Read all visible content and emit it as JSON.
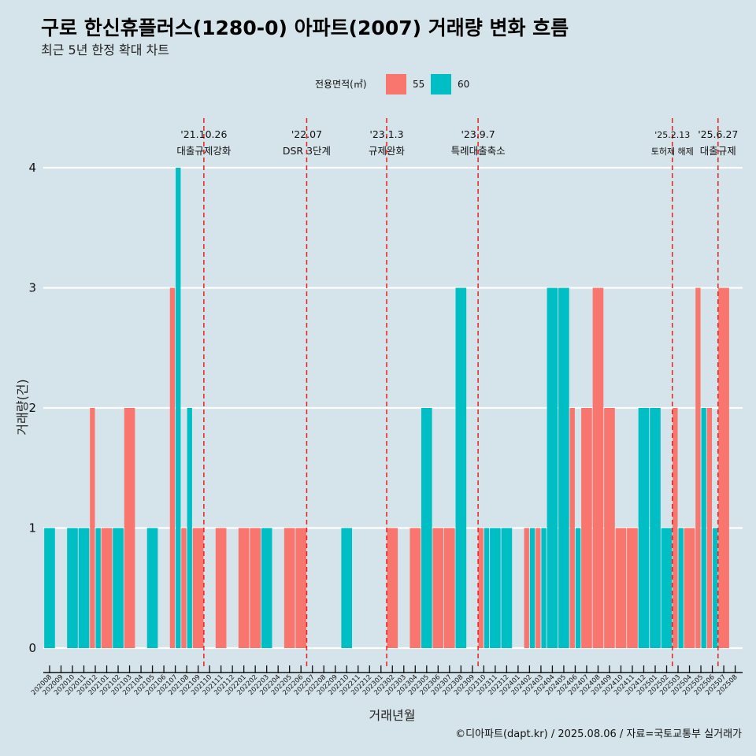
{
  "chart_data": {
    "type": "bar",
    "title": "구로 한신휴플러스(1280-0) 아파트(2007) 거래량 변화 흐름",
    "subtitle": "최근 5년 한정 확대 차트",
    "xlabel": "거래년월",
    "ylabel": "거래량(건)",
    "caption": "©디아파트(dapt.kr) / 2025.08.06 / 자료=국토교통부 실거래가",
    "legend_title": "전용면적(㎡)",
    "legend_position": "top",
    "ylim": [
      0,
      4
    ],
    "y_ticks": [
      "0",
      "1",
      "2",
      "3",
      "4"
    ],
    "grid": true,
    "colors": {
      "55": "#f8766d",
      "60": "#00bfc4"
    },
    "categories": [
      "202008",
      "202009",
      "202010",
      "202011",
      "202012",
      "202101",
      "202102",
      "202103",
      "202104",
      "202105",
      "202106",
      "202107",
      "202108",
      "202109",
      "202110",
      "202111",
      "202112",
      "202201",
      "202202",
      "202203",
      "202204",
      "202205",
      "202206",
      "202207",
      "202208",
      "202209",
      "202210",
      "202211",
      "202212",
      "202301",
      "202302",
      "202303",
      "202304",
      "202305",
      "202306",
      "202307",
      "202308",
      "202309",
      "202310",
      "202311",
      "202312",
      "202401",
      "202402",
      "202403",
      "202404",
      "202405",
      "202406",
      "202407",
      "202408",
      "202409",
      "202410",
      "202411",
      "202412",
      "202501",
      "202502",
      "202503",
      "202504",
      "202505",
      "202506",
      "202507",
      "202508"
    ],
    "series": [
      {
        "name": "55",
        "values": [
          0,
          0,
          0,
          0,
          2,
          1,
          0,
          2,
          0,
          0,
          0,
          3,
          1,
          1,
          0,
          1,
          0,
          1,
          1,
          0,
          0,
          1,
          1,
          0,
          0,
          0,
          0,
          0,
          0,
          0,
          1,
          0,
          1,
          0,
          1,
          1,
          0,
          0,
          1,
          0,
          0,
          0,
          1,
          1,
          0,
          0,
          2,
          2,
          3,
          2,
          1,
          1,
          0,
          0,
          0,
          2,
          1,
          3,
          2,
          3,
          0
        ]
      },
      {
        "name": "60",
        "values": [
          1,
          0,
          1,
          1,
          1,
          0,
          1,
          0,
          0,
          1,
          0,
          4,
          2,
          0,
          0,
          0,
          0,
          0,
          0,
          1,
          0,
          0,
          0,
          0,
          0,
          0,
          1,
          0,
          0,
          0,
          0,
          0,
          0,
          2,
          0,
          0,
          3,
          0,
          1,
          1,
          1,
          0,
          1,
          1,
          3,
          3,
          1,
          0,
          0,
          0,
          0,
          0,
          2,
          2,
          1,
          1,
          0,
          2,
          1,
          0,
          0
        ]
      }
    ],
    "events": [
      {
        "date": "'21.10.26",
        "label": "대출규제강화",
        "after_index": 13
      },
      {
        "date": "'22.07",
        "label": "DSR 3단계",
        "after_index": 22
      },
      {
        "date": "'23.1.3",
        "label": "규제완화",
        "after_index": 29
      },
      {
        "date": "'23.9.7",
        "label": "특례대출축소",
        "after_index": 37
      },
      {
        "date": "'25.2.13",
        "label": "토허제 해제",
        "after_index": 54
      },
      {
        "date": "'25.6.27",
        "label": "대출규제",
        "after_index": 58
      }
    ]
  }
}
